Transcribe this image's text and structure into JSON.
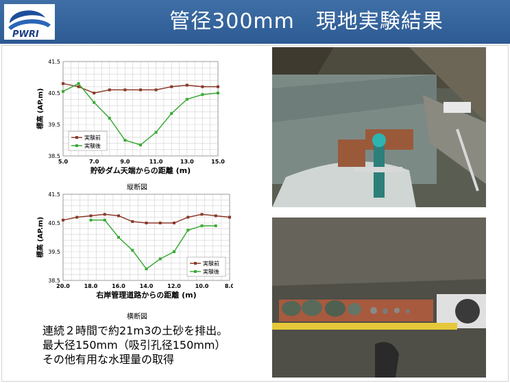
{
  "header": {
    "title": "管径300mm　現地実験結果",
    "logo_text": "PWRI",
    "background": "#3566a0"
  },
  "chart_data": [
    {
      "type": "line",
      "caption": "縦断図",
      "xlabel": "貯砂ダム天端からの距離 (m)",
      "ylabel": "標高 (AP.m)",
      "xlim": [
        5.0,
        15.0
      ],
      "ylim": [
        38.5,
        41.5
      ],
      "x_ticks": [
        "5.0",
        "7.0",
        "9.0",
        "11.0",
        "13.0",
        "15.0"
      ],
      "y_ticks": [
        "38.5",
        "39.5",
        "40.5",
        "41.5"
      ],
      "legend_position": "bottom-left",
      "series": [
        {
          "name": "実験前",
          "color": "#8b3a2a",
          "x": [
            5,
            6,
            7,
            8,
            9,
            10,
            11,
            12,
            13,
            14,
            15
          ],
          "values": [
            40.8,
            40.7,
            40.5,
            40.6,
            40.6,
            40.6,
            40.6,
            40.7,
            40.75,
            40.7,
            40.7
          ]
        },
        {
          "name": "実験後",
          "color": "#3aaa35",
          "x": [
            5,
            6,
            7,
            8,
            9,
            10,
            11,
            12,
            13,
            14,
            15
          ],
          "values": [
            40.55,
            40.8,
            40.2,
            39.7,
            39.0,
            38.85,
            39.25,
            39.85,
            40.3,
            40.45,
            40.5
          ]
        }
      ]
    },
    {
      "type": "line",
      "caption": "横断図",
      "xlabel": "右岸管理道路からの距離 (m)",
      "ylabel": "標高 (AP.m)",
      "xlim": [
        20.0,
        8.0
      ],
      "ylim": [
        38.5,
        41.5
      ],
      "x_ticks": [
        "20.0",
        "18.0",
        "16.0",
        "14.0",
        "12.0",
        "10.0",
        "8.0"
      ],
      "y_ticks": [
        "38.5",
        "39.5",
        "40.5",
        "41.5"
      ],
      "legend_position": "bottom-right",
      "series": [
        {
          "name": "実験前",
          "color": "#8b3a2a",
          "x": [
            20,
            19,
            18,
            17,
            16,
            15,
            14,
            13,
            12,
            11,
            10,
            9,
            8
          ],
          "values": [
            40.6,
            40.7,
            40.75,
            40.8,
            40.75,
            40.55,
            40.5,
            40.5,
            40.5,
            40.7,
            40.8,
            40.75,
            40.7
          ]
        },
        {
          "name": "実験後",
          "color": "#3aaa35",
          "x": [
            18,
            17,
            16,
            15,
            14,
            13,
            12,
            11,
            10,
            9
          ],
          "values": [
            40.6,
            40.6,
            40.0,
            39.55,
            38.9,
            39.25,
            39.5,
            40.25,
            40.4,
            40.4
          ]
        }
      ]
    }
  ],
  "summary": {
    "line1": "連続２時間で約21m3の土砂を排出。",
    "line2": "最大径150mm（吸引孔径150mm）",
    "line3": "その他有用な水理量の取得"
  },
  "photos": {
    "top": "river-experiment-photo",
    "bottom": "sediment-samples-photo"
  }
}
